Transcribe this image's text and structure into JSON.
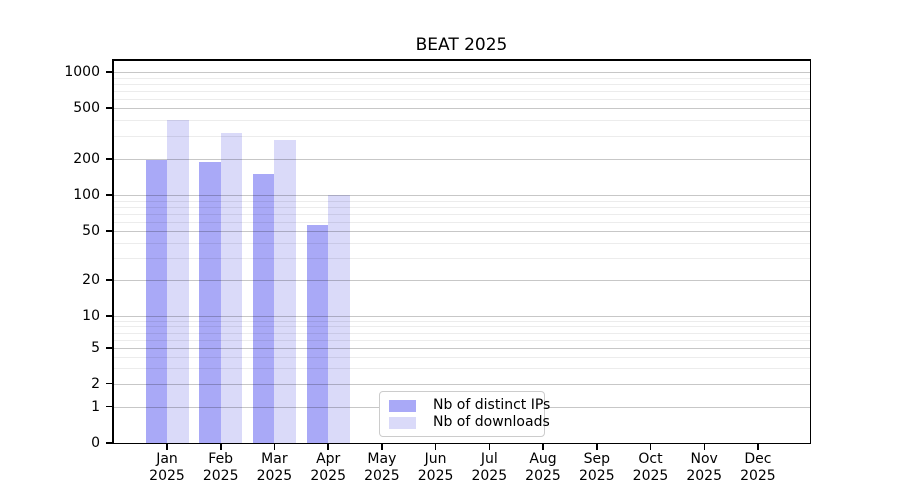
{
  "chart_data": {
    "type": "bar",
    "title": "BEAT 2025",
    "x_axis": {
      "categories": [
        "Jan",
        "Feb",
        "Mar",
        "Apr",
        "May",
        "Jun",
        "Jul",
        "Aug",
        "Sep",
        "Oct",
        "Nov",
        "Dec"
      ],
      "year_label": "2025"
    },
    "y_axis": {
      "scale": "symlog",
      "ticks": [
        0,
        1,
        2,
        5,
        10,
        20,
        50,
        100,
        200,
        500,
        1000
      ],
      "range": [
        0,
        1000
      ]
    },
    "series": [
      {
        "name": "Nb of distinct IPs",
        "color": "#a9a9f7",
        "values": [
          197,
          190,
          150,
          56,
          null,
          null,
          null,
          null,
          null,
          null,
          null,
          null
        ]
      },
      {
        "name": "Nb of downloads",
        "color": "#dadaf9",
        "values": [
          400,
          320,
          280,
          100,
          null,
          null,
          null,
          null,
          null,
          null,
          null,
          null
        ]
      }
    ],
    "grid": "both",
    "legend_position": "lower center",
    "colors": {
      "grid_major": "#c7c7c7",
      "grid_minor": "#ececec",
      "spine": "#000000",
      "background": "#ffffff"
    }
  }
}
